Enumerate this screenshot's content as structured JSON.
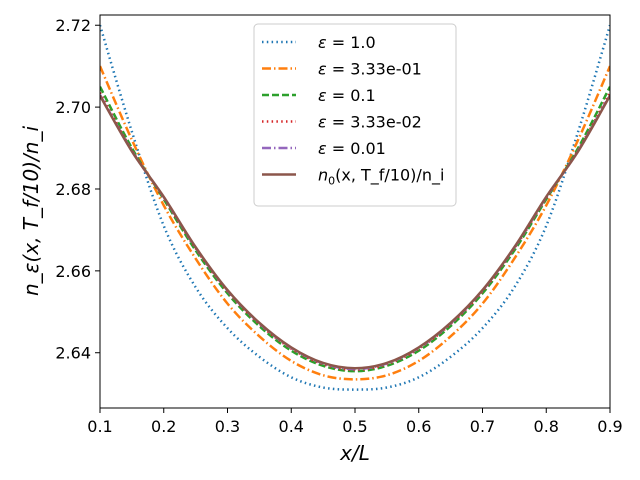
{
  "chart_data": {
    "type": "line",
    "xlabel": "x/L",
    "ylabel": "n_ε(x, T_f/10)/n_i",
    "xlim": [
      0.1,
      0.9
    ],
    "ylim": [
      2.6265,
      2.7225
    ],
    "x_ticks": [
      "0.1",
      "0.2",
      "0.3",
      "0.4",
      "0.5",
      "0.6",
      "0.7",
      "0.8",
      "0.9"
    ],
    "y_ticks": [
      "2.64",
      "2.66",
      "2.68",
      "2.70",
      "2.72"
    ],
    "legend_position": "top-center",
    "series": [
      {
        "name": "ε = 1.0",
        "legend_prefix": "ε",
        "legend_value": " = 1.0",
        "color": "#1f77b4",
        "dash": "dotted",
        "x": [
          0.1,
          0.15,
          0.2,
          0.25,
          0.3,
          0.35,
          0.4,
          0.45,
          0.5,
          0.55,
          0.6,
          0.65,
          0.7,
          0.75,
          0.8,
          0.85,
          0.9
        ],
        "values": [
          2.72,
          2.694,
          2.671,
          2.656,
          2.646,
          2.639,
          2.634,
          2.6315,
          2.631,
          2.6315,
          2.634,
          2.639,
          2.646,
          2.656,
          2.671,
          2.694,
          2.72
        ]
      },
      {
        "name": "ε = 3.33e-01",
        "legend_prefix": "ε",
        "legend_value": " = 3.33e-01",
        "color": "#ff7f0e",
        "dash": "dashdot",
        "x": [
          0.1,
          0.15,
          0.2,
          0.25,
          0.3,
          0.35,
          0.4,
          0.45,
          0.5,
          0.55,
          0.6,
          0.65,
          0.7,
          0.75,
          0.8,
          0.85,
          0.9
        ],
        "values": [
          2.71,
          2.692,
          2.676,
          2.663,
          2.652,
          2.644,
          2.638,
          2.6345,
          2.6335,
          2.6345,
          2.638,
          2.644,
          2.652,
          2.663,
          2.676,
          2.692,
          2.71
        ]
      },
      {
        "name": "ε = 0.1",
        "legend_prefix": "ε",
        "legend_value": " = 0.1",
        "color": "#2ca02c",
        "dash": "dashed",
        "x": [
          0.1,
          0.15,
          0.2,
          0.25,
          0.3,
          0.35,
          0.4,
          0.45,
          0.5,
          0.55,
          0.6,
          0.65,
          0.7,
          0.75,
          0.8,
          0.85,
          0.9
        ],
        "values": [
          2.705,
          2.69,
          2.6775,
          2.665,
          2.6545,
          2.6465,
          2.6405,
          2.6368,
          2.6355,
          2.6368,
          2.6405,
          2.6465,
          2.6545,
          2.665,
          2.6775,
          2.69,
          2.705
        ]
      },
      {
        "name": "ε = 3.33e-02",
        "legend_prefix": "ε",
        "legend_value": " = 3.33e-02",
        "color": "#d62728",
        "dash": "dotted",
        "x": [
          0.1,
          0.15,
          0.2,
          0.25,
          0.3,
          0.35,
          0.4,
          0.45,
          0.5,
          0.55,
          0.6,
          0.65,
          0.7,
          0.75,
          0.8,
          0.85,
          0.9
        ],
        "values": [
          2.7035,
          2.6895,
          2.6778,
          2.6655,
          2.655,
          2.647,
          2.641,
          2.6372,
          2.6358,
          2.6372,
          2.641,
          2.647,
          2.655,
          2.6655,
          2.6778,
          2.6895,
          2.7035
        ]
      },
      {
        "name": "ε = 0.01",
        "legend_prefix": "ε",
        "legend_value": " = 0.01",
        "color": "#9467bd",
        "dash": "dashdot",
        "x": [
          0.1,
          0.15,
          0.2,
          0.25,
          0.3,
          0.35,
          0.4,
          0.45,
          0.5,
          0.55,
          0.6,
          0.65,
          0.7,
          0.75,
          0.8,
          0.85,
          0.9
        ],
        "values": [
          2.703,
          2.6893,
          2.678,
          2.6657,
          2.6552,
          2.6472,
          2.6412,
          2.6374,
          2.636,
          2.6374,
          2.6412,
          2.6472,
          2.6552,
          2.6657,
          2.678,
          2.6893,
          2.703
        ]
      },
      {
        "name": "n_0(x, T_f/10)/n_i",
        "legend_prefix": "n",
        "legend_value": "(x, T_f/10)/n_i",
        "color": "#8c564b",
        "dash": "solid",
        "x": [
          0.1,
          0.15,
          0.2,
          0.25,
          0.3,
          0.35,
          0.4,
          0.45,
          0.5,
          0.55,
          0.6,
          0.65,
          0.7,
          0.75,
          0.8,
          0.85,
          0.9
        ],
        "values": [
          2.7028,
          2.6892,
          2.6781,
          2.6658,
          2.6553,
          2.6473,
          2.6413,
          2.6375,
          2.6362,
          2.6375,
          2.6413,
          2.6473,
          2.6553,
          2.6658,
          2.6781,
          2.6892,
          2.7028
        ]
      }
    ]
  }
}
